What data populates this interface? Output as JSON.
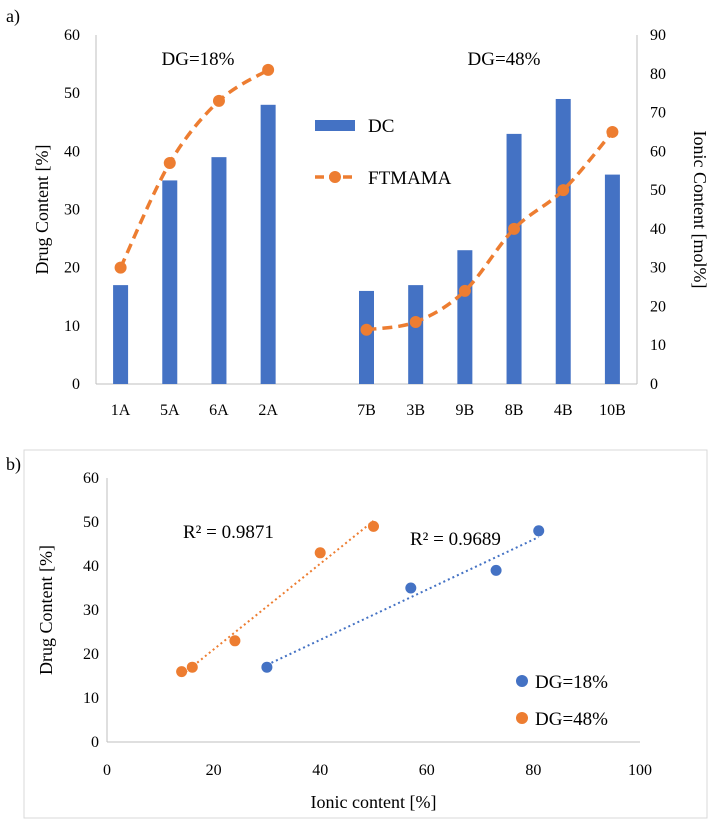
{
  "chart_data": [
    {
      "panel_label": "a)",
      "type": "bar",
      "categories": [
        "1A",
        "5A",
        "6A",
        "2A",
        "",
        "7B",
        "3B",
        "9B",
        "8B",
        "4B",
        "10B"
      ],
      "series": [
        {
          "name": "DC",
          "type": "bar",
          "axis": "left",
          "color": "#4472C4",
          "values": [
            17,
            35,
            39,
            48,
            null,
            16,
            17,
            23,
            43,
            49,
            36
          ]
        },
        {
          "name": "FTMAMA",
          "type": "line",
          "axis": "right",
          "style": "dashed-smooth",
          "color": "#ED7D31",
          "values": [
            30,
            57,
            73,
            81,
            null,
            14,
            16,
            24,
            40,
            50,
            65
          ]
        }
      ],
      "ylabel": "Drug Content [%]",
      "y2label": "Ionic Content [mol%]",
      "ylim": [
        0,
        60
      ],
      "y2lim": [
        0,
        90
      ],
      "yticks": [
        "0",
        "10",
        "20",
        "30",
        "40",
        "50",
        "60"
      ],
      "y2ticks": [
        "0",
        "10",
        "20",
        "30",
        "40",
        "50",
        "60",
        "70",
        "80",
        "90"
      ],
      "annotations": [
        "DG=18%",
        "DG=48%"
      ],
      "legend_position": "center",
      "grid": false
    },
    {
      "panel_label": "b)",
      "type": "scatter",
      "xlabel": "Ionic content [%]",
      "ylabel": "Drug Content [%]",
      "xlim": [
        0,
        100
      ],
      "ylim": [
        0,
        60
      ],
      "xticks": [
        "0",
        "20",
        "40",
        "60",
        "80",
        "100"
      ],
      "yticks": [
        "0",
        "10",
        "20",
        "30",
        "40",
        "50",
        "60"
      ],
      "series": [
        {
          "name": "DG=18%",
          "color": "#4472C4",
          "x": [
            30,
            57,
            73,
            81
          ],
          "y": [
            17,
            35,
            39,
            48
          ],
          "trendline": "linear",
          "r2_label": "R² = 0.9689"
        },
        {
          "name": "DG=48%",
          "color": "#ED7D31",
          "x": [
            14,
            16,
            24,
            40,
            50
          ],
          "y": [
            16,
            17,
            23,
            43,
            49
          ],
          "trendline": "linear",
          "r2_label": "R² = 0.9871"
        }
      ],
      "legend_position": "bottom-right",
      "grid": false
    }
  ]
}
